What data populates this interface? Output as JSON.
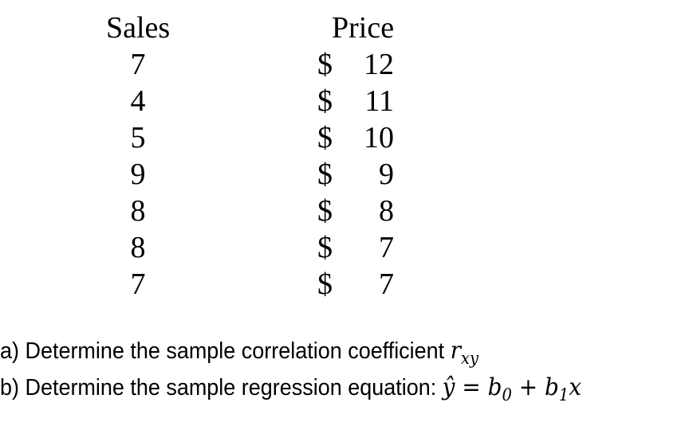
{
  "table": {
    "headers": {
      "sales": "Sales",
      "price": "Price"
    },
    "currency": "$",
    "rows": [
      {
        "sales": "7",
        "price": "12"
      },
      {
        "sales": "4",
        "price": "11"
      },
      {
        "sales": "5",
        "price": "10"
      },
      {
        "sales": "9",
        "price": "9"
      },
      {
        "sales": "8",
        "price": "8"
      },
      {
        "sales": "8",
        "price": "7"
      },
      {
        "sales": "7",
        "price": "7"
      }
    ]
  },
  "questions": {
    "a": {
      "text": "a) Determine the sample correlation coefficient ",
      "symbol": "r",
      "subscript": "xy"
    },
    "b": {
      "text": "b) Determine the sample regression equation: ",
      "yhat": "ŷ",
      "equals": " = ",
      "b": "b",
      "sub0": "0",
      "plus": " + ",
      "sub1": "1",
      "x": "x"
    }
  }
}
